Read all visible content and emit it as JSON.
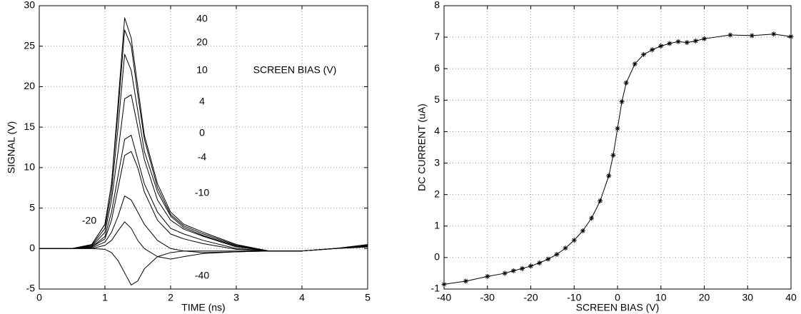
{
  "chart_data": [
    {
      "type": "line",
      "xlabel": "TIME (ns)",
      "ylabel": "SIGNAL (V)",
      "annotation": "SCREEN BIAS (V)",
      "x": [
        0,
        0.5,
        0.8,
        1.0,
        1.1,
        1.2,
        1.3,
        1.4,
        1.5,
        1.6,
        1.8,
        2.0,
        2.2,
        2.5,
        3.0,
        3.5,
        4.0,
        4.5,
        5.0
      ],
      "xlim": [
        0,
        5
      ],
      "xticks": [
        0,
        1,
        2,
        3,
        4,
        5
      ],
      "ylim": [
        -5,
        30
      ],
      "yticks": [
        -5,
        0,
        5,
        10,
        15,
        20,
        25,
        30
      ],
      "grid": true,
      "series": [
        {
          "name": "40",
          "color": "#000000",
          "values": [
            0,
            0,
            0.5,
            3,
            8,
            18,
            28.5,
            26,
            20,
            14,
            8,
            4.5,
            3,
            2,
            0.5,
            -0.3,
            -0.3,
            0,
            0.5
          ]
        },
        {
          "name": "20",
          "color": "#000000",
          "values": [
            0,
            0,
            0.5,
            3,
            8,
            17,
            27,
            25,
            19,
            13.5,
            7.5,
            4.2,
            2.8,
            1.8,
            0.4,
            -0.3,
            -0.3,
            0,
            0.4
          ]
        },
        {
          "name": "10",
          "color": "#000000",
          "values": [
            0,
            0,
            0.4,
            2.5,
            7,
            15,
            24,
            22,
            17,
            12,
            7,
            4,
            2.6,
            1.6,
            0.3,
            -0.3,
            -0.3,
            0,
            0.4
          ]
        },
        {
          "name": "4",
          "color": "#000000",
          "values": [
            0,
            0,
            0.3,
            2,
            6,
            12,
            18.5,
            19,
            15,
            11,
            6,
            3.5,
            2.4,
            1.5,
            0.2,
            -0.3,
            -0.3,
            0,
            0.3
          ]
        },
        {
          "name": "0",
          "color": "#000000",
          "values": [
            0,
            0,
            0.2,
            1.5,
            4.5,
            9,
            13.5,
            14,
            11,
            8,
            4.5,
            2.5,
            1.8,
            1,
            0,
            -0.3,
            -0.3,
            0,
            0.3
          ]
        },
        {
          "name": "-4",
          "color": "#000000",
          "values": [
            0,
            0,
            0.2,
            1.2,
            3.5,
            7.5,
            11.5,
            12,
            10,
            7,
            3.5,
            1.8,
            1.2,
            0.6,
            -0.1,
            -0.3,
            -0.3,
            0,
            0.3
          ]
        },
        {
          "name": "-10",
          "color": "#000000",
          "values": [
            0,
            0,
            0.1,
            0.8,
            2,
            4,
            6.5,
            6,
            4.5,
            3,
            1,
            0,
            -0.3,
            -0.5,
            -0.4,
            -0.3,
            -0.3,
            0,
            0.3
          ]
        },
        {
          "name": "-20",
          "color": "#000000",
          "values": [
            0,
            0,
            0,
            0.4,
            1,
            2.2,
            3.3,
            2.5,
            1,
            0,
            -1,
            -1.3,
            -1,
            -0.6,
            -0.4,
            -0.3,
            -0.3,
            0,
            0.2
          ]
        },
        {
          "name": "-40",
          "color": "#000000",
          "values": [
            0,
            0,
            0,
            -0.1,
            -0.5,
            -1.5,
            -3,
            -4.5,
            -4,
            -2.5,
            -1,
            -0.5,
            -0.3,
            -0.3,
            -0.3,
            -0.3,
            -0.3,
            0,
            0.2
          ]
        }
      ]
    },
    {
      "type": "line",
      "xlabel": "SCREEN BIAS (V)",
      "ylabel": "DC CURRENT (uA)",
      "marker": "asterisk",
      "x": [
        -40,
        -35,
        -30,
        -26,
        -24,
        -22,
        -20,
        -18,
        -16,
        -14,
        -12,
        -10,
        -8,
        -6,
        -4,
        -2,
        -1,
        0,
        1,
        2,
        4,
        6,
        8,
        10,
        12,
        14,
        16,
        18,
        20,
        26,
        31,
        36,
        40
      ],
      "xlim": [
        -40,
        40
      ],
      "xticks": [
        -40,
        -30,
        -20,
        -10,
        0,
        10,
        20,
        30,
        40
      ],
      "ylim": [
        -1,
        8
      ],
      "yticks": [
        -1,
        0,
        1,
        2,
        3,
        4,
        5,
        6,
        7,
        8
      ],
      "grid": true,
      "series": [
        {
          "name": "DC CURRENT",
          "color": "#000000",
          "values": [
            -0.85,
            -0.75,
            -0.6,
            -0.5,
            -0.42,
            -0.35,
            -0.27,
            -0.17,
            -0.05,
            0.1,
            0.3,
            0.55,
            0.85,
            1.25,
            1.8,
            2.6,
            3.25,
            4.1,
            4.95,
            5.55,
            6.15,
            6.45,
            6.6,
            6.72,
            6.8,
            6.86,
            6.83,
            6.88,
            6.95,
            7.07,
            7.05,
            7.1,
            7.02
          ]
        }
      ]
    }
  ]
}
